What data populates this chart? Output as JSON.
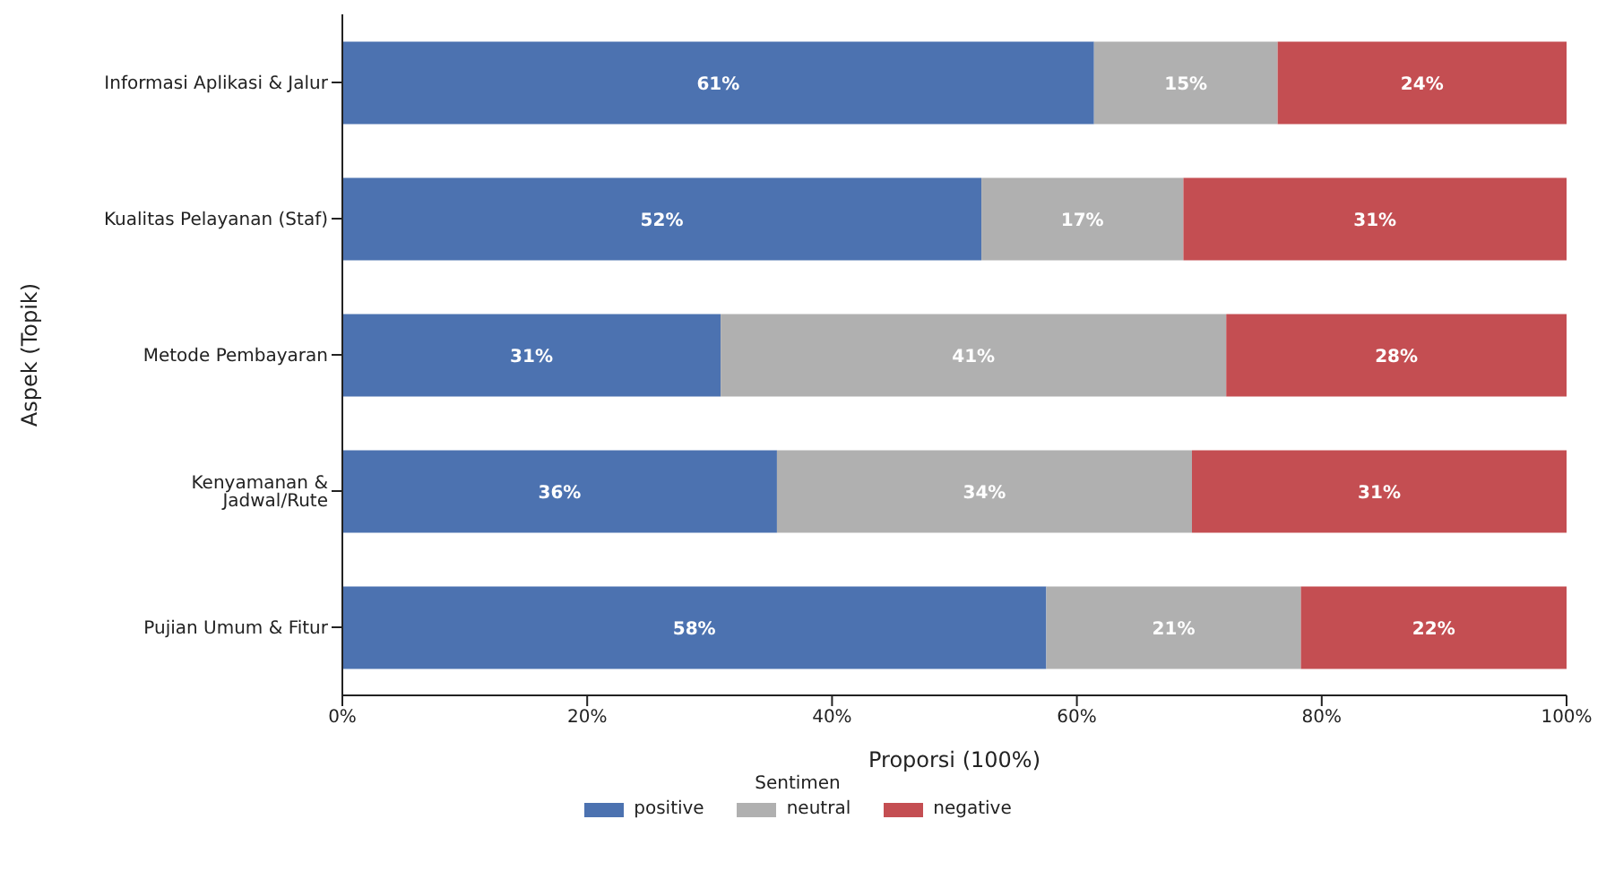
{
  "chart_data": {
    "type": "bar",
    "orientation": "horizontal",
    "stacked": true,
    "categories": [
      "Informasi Aplikasi & Jalur",
      "Kualitas Pelayanan (Staf)",
      "Metode Pembayaran",
      "Kenyamanan & Jadwal/Rute",
      "Pujian Umum & Fitur"
    ],
    "series": [
      {
        "name": "positive",
        "color": "#4c72b0",
        "values": [
          61.4,
          52.2,
          30.9,
          35.5,
          57.5
        ],
        "value_labels": [
          "61%",
          "52%",
          "31%",
          "36%",
          "58%"
        ]
      },
      {
        "name": "neutral",
        "color": "#b0b0b0",
        "values": [
          15.0,
          16.5,
          41.3,
          33.9,
          20.8
        ],
        "value_labels": [
          "15%",
          "17%",
          "41%",
          "34%",
          "21%"
        ]
      },
      {
        "name": "negative",
        "color": "#c44e52",
        "values": [
          23.6,
          31.3,
          27.8,
          30.6,
          21.7
        ],
        "value_labels": [
          "24%",
          "31%",
          "28%",
          "31%",
          "22%"
        ]
      }
    ],
    "xlim": [
      0,
      100
    ],
    "xticks": [
      {
        "value": 0,
        "label": "0%"
      },
      {
        "value": 20,
        "label": "20%"
      },
      {
        "value": 40,
        "label": "40%"
      },
      {
        "value": 60,
        "label": "60%"
      },
      {
        "value": 80,
        "label": "80%"
      },
      {
        "value": 100,
        "label": "100%"
      }
    ],
    "xlabel": "Proporsi (100%)",
    "ylabel": "Aspek (Topik)",
    "legend_title": "Sentimen",
    "legend": "bottom",
    "grid": false
  }
}
